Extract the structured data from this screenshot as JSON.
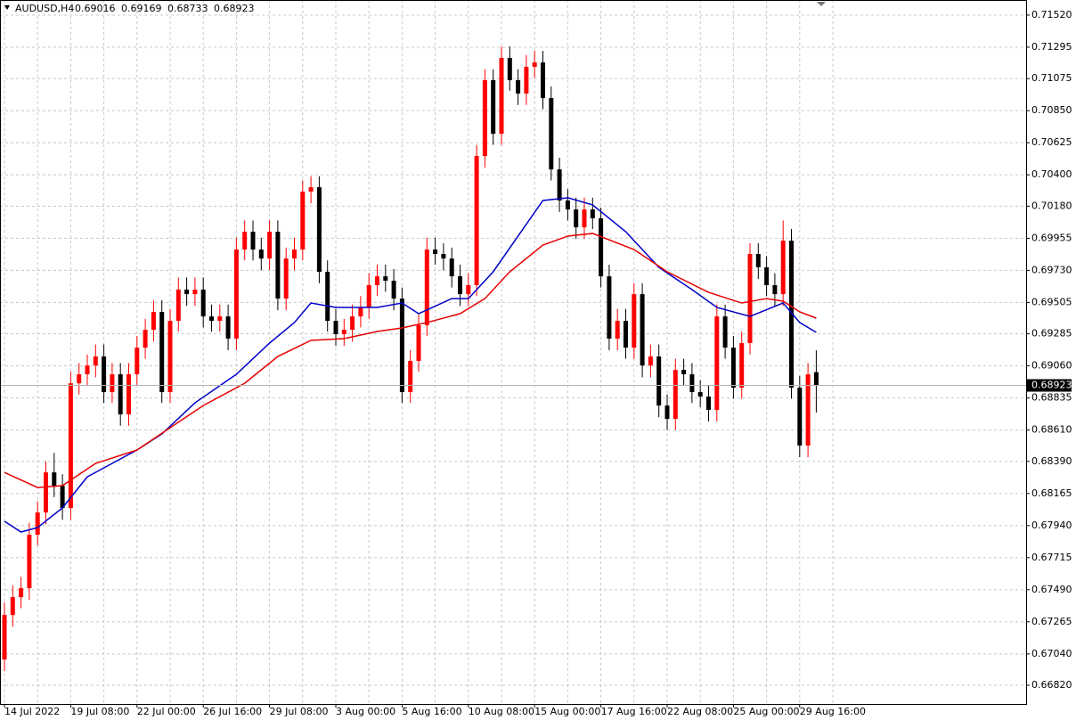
{
  "chart_data": {
    "type": "candlestick",
    "symbol": "AUDUSD,H4",
    "categories": [
      "14 Jul 2022",
      null,
      null,
      null,
      null,
      null,
      null,
      null,
      "19 Jul 08:00",
      null,
      null,
      null,
      null,
      null,
      null,
      null,
      "22 Jul 00:00",
      null,
      null,
      null,
      null,
      null,
      null,
      null,
      "26 Jul 16:00",
      null,
      null,
      null,
      null,
      null,
      null,
      null,
      "29 Jul 08:00",
      null,
      null,
      null,
      null,
      null,
      null,
      null,
      "3 Aug 00:00",
      null,
      null,
      null,
      null,
      null,
      null,
      null,
      "5 Aug 16:00",
      null,
      null,
      null,
      null,
      null,
      null,
      null,
      "10 Aug 08:00",
      null,
      null,
      null,
      null,
      null,
      null,
      null,
      "15 Aug 00:00",
      null,
      null,
      null,
      null,
      null,
      null,
      null,
      "17 Aug 16:00",
      null,
      null,
      null,
      null,
      null,
      null,
      null,
      "22 Aug 08:00",
      null,
      null,
      null,
      null,
      null,
      null,
      null,
      "25 Aug 00:00",
      null,
      null,
      null,
      null,
      null,
      null,
      null,
      "29 Aug 16:00",
      null,
      null
    ],
    "open": [
      0.67001,
      0.67313,
      0.67438,
      0.67501,
      0.67876,
      0.68032,
      0.68313,
      0.6822,
      0.68063,
      0.68938,
      0.69001,
      0.69063,
      0.69126,
      0.68876,
      0.69001,
      0.6872,
      0.69001,
      0.69188,
      0.69313,
      0.69438,
      0.68876,
      0.69376,
      0.69595,
      0.69563,
      0.69595,
      0.69407,
      0.69376,
      0.69407,
      0.69251,
      0.69876,
      0.70001,
      0.69876,
      0.69813,
      0.70001,
      0.69532,
      0.69813,
      0.69876,
      0.70282,
      0.70313,
      0.6972,
      0.69376,
      0.69282,
      0.69313,
      0.69407,
      0.6947,
      0.69626,
      0.69688,
      0.69657,
      0.69532,
      0.68876,
      0.69095,
      0.69345,
      0.69876,
      0.69845,
      0.69813,
      0.69688,
      0.69563,
      0.69626,
      0.70532,
      0.71064,
      0.70688,
      0.7122,
      0.71064,
      0.7097,
      0.71157,
      0.71188,
      0.70938,
      0.70438,
      0.7022,
      0.70157,
      0.70032,
      0.70157,
      0.70095,
      0.69688,
      0.69251,
      0.69376,
      0.69188,
      0.69563,
      0.69063,
      0.69126,
      0.68782,
      0.68688,
      0.69032,
      0.69001,
      0.68876,
      0.68845,
      0.68751,
      0.69407,
      0.69188,
      0.68907,
      0.6922,
      0.69845,
      0.69751,
      0.69626,
      0.69563,
      0.69938,
      0.68907,
      0.68501,
      0.69016
    ],
    "high": [
      0.674,
      0.6752,
      0.6758,
      0.6796,
      0.6811,
      0.6839,
      0.6845,
      0.683,
      0.6902,
      0.6908,
      0.6914,
      0.6921,
      0.6921,
      0.6908,
      0.6908,
      0.6908,
      0.6927,
      0.6939,
      0.6952,
      0.6952,
      0.6946,
      0.6968,
      0.6968,
      0.6968,
      0.6968,
      0.6949,
      0.6949,
      0.6949,
      0.6996,
      0.7008,
      0.7008,
      0.6996,
      0.7008,
      0.7008,
      0.6989,
      0.6996,
      0.7036,
      0.7039,
      0.7039,
      0.698,
      0.6946,
      0.6939,
      0.6949,
      0.6955,
      0.6971,
      0.6977,
      0.6977,
      0.6974,
      0.6961,
      0.6917,
      0.6942,
      0.6996,
      0.6996,
      0.6992,
      0.6989,
      0.6977,
      0.6971,
      0.7061,
      0.7114,
      0.7114,
      0.713,
      0.713,
      0.7114,
      0.7124,
      0.7127,
      0.7127,
      0.7102,
      0.7052,
      0.703,
      0.7024,
      0.7024,
      0.7024,
      0.7017,
      0.6977,
      0.6946,
      0.6946,
      0.6964,
      0.6964,
      0.6921,
      0.6921,
      0.6886,
      0.6911,
      0.6911,
      0.6908,
      0.6896,
      0.6892,
      0.6949,
      0.6949,
      0.6927,
      0.693,
      0.6992,
      0.6992,
      0.6983,
      0.6971,
      0.7008,
      0.7002,
      0.6899,
      0.6908,
      0.69169
    ],
    "low": [
      0.6692,
      0.6723,
      0.6736,
      0.6742,
      0.678,
      0.6795,
      0.6814,
      0.6798,
      0.6798,
      0.6886,
      0.6892,
      0.6898,
      0.688,
      0.688,
      0.6864,
      0.6864,
      0.6892,
      0.6911,
      0.6923,
      0.688,
      0.688,
      0.693,
      0.6948,
      0.6948,
      0.6933,
      0.693,
      0.693,
      0.6917,
      0.6917,
      0.698,
      0.698,
      0.6973,
      0.6973,
      0.6945,
      0.6945,
      0.6973,
      0.698,
      0.702,
      0.6964,
      0.693,
      0.692,
      0.692,
      0.6923,
      0.6933,
      0.6939,
      0.6955,
      0.6958,
      0.6945,
      0.688,
      0.688,
      0.6902,
      0.6927,
      0.6977,
      0.6973,
      0.6961,
      0.6948,
      0.6948,
      0.6955,
      0.7045,
      0.7061,
      0.7061,
      0.7099,
      0.7089,
      0.7089,
      0.7108,
      0.7086,
      0.7036,
      0.7014,
      0.7008,
      0.6995,
      0.6995,
      0.7002,
      0.6961,
      0.6917,
      0.6917,
      0.6911,
      0.6911,
      0.6898,
      0.6898,
      0.687,
      0.6861,
      0.6861,
      0.6892,
      0.688,
      0.6877,
      0.6867,
      0.6867,
      0.6911,
      0.6883,
      0.6883,
      0.6914,
      0.6967,
      0.6955,
      0.6948,
      0.6948,
      0.6883,
      0.6842,
      0.6842,
      0.68733
    ],
    "close": [
      0.67313,
      0.67438,
      0.67501,
      0.67876,
      0.68032,
      0.68313,
      0.6822,
      0.68063,
      0.68938,
      0.69001,
      0.69063,
      0.69126,
      0.68876,
      0.69001,
      0.6872,
      0.69001,
      0.69188,
      0.69313,
      0.69438,
      0.68876,
      0.69376,
      0.69595,
      0.69563,
      0.69595,
      0.69407,
      0.69376,
      0.69407,
      0.69251,
      0.69876,
      0.70001,
      0.69876,
      0.69813,
      0.70001,
      0.69532,
      0.69813,
      0.69876,
      0.70282,
      0.70313,
      0.6972,
      0.69376,
      0.69282,
      0.69313,
      0.69407,
      0.6947,
      0.69626,
      0.69688,
      0.69657,
      0.69532,
      0.68876,
      0.69095,
      0.69345,
      0.69876,
      0.69845,
      0.69813,
      0.69688,
      0.69563,
      0.69626,
      0.70532,
      0.71064,
      0.70688,
      0.7122,
      0.71064,
      0.7097,
      0.71157,
      0.71188,
      0.70938,
      0.70438,
      0.7022,
      0.70157,
      0.70032,
      0.70157,
      0.70095,
      0.69688,
      0.69251,
      0.69376,
      0.69188,
      0.69563,
      0.69063,
      0.69126,
      0.68782,
      0.68688,
      0.69032,
      0.69001,
      0.68876,
      0.68845,
      0.68751,
      0.69407,
      0.69188,
      0.68907,
      0.6922,
      0.69845,
      0.69751,
      0.69626,
      0.69563,
      0.69938,
      0.68907,
      0.68501,
      0.69001,
      0.68923
    ],
    "up_color": "#ff0000",
    "down_color": "#000000",
    "moving_averages": [
      {
        "color": "#0000c8",
        "x": [
          0,
          2,
          4,
          7,
          10,
          16,
          19,
          23,
          28,
          32,
          35,
          37,
          40,
          45,
          48,
          50,
          54,
          56,
          59,
          62,
          65,
          68,
          71,
          75,
          79,
          83,
          86,
          90,
          94,
          96,
          98
        ],
        "values": [
          0.6797,
          0.67895,
          0.67926,
          0.68064,
          0.68282,
          0.6847,
          0.68582,
          0.68801,
          0.69001,
          0.6922,
          0.69364,
          0.69501,
          0.6947,
          0.6947,
          0.69501,
          0.69426,
          0.69532,
          0.69532,
          0.6972,
          0.6997,
          0.7022,
          0.70239,
          0.70189,
          0.70001,
          0.69751,
          0.69595,
          0.6947,
          0.69407,
          0.69501,
          0.69364,
          0.69295
        ]
      },
      {
        "color": "#e60000",
        "x": [
          0,
          4,
          7,
          11,
          16,
          20,
          24,
          29,
          33,
          37,
          41,
          45,
          48,
          51,
          55,
          58,
          61,
          65,
          68,
          71,
          76,
          80,
          85,
          89,
          92,
          94,
          96,
          98
        ],
        "values": [
          0.68313,
          0.68207,
          0.6822,
          0.68376,
          0.6847,
          0.68626,
          0.68782,
          0.68938,
          0.69126,
          0.69239,
          0.69251,
          0.69301,
          0.69326,
          0.69364,
          0.69426,
          0.69532,
          0.6972,
          0.69907,
          0.6997,
          0.69989,
          0.69876,
          0.6972,
          0.69576,
          0.69501,
          0.69532,
          0.69514,
          0.69439,
          0.69395
        ]
      }
    ],
    "ylim": [
      0.66689,
      0.71626
    ],
    "yticks": [
      {
        "value": 0.7152,
        "label": "0.71520"
      },
      {
        "value": 0.71295,
        "label": "0.71295"
      },
      {
        "value": 0.71075,
        "label": "0.71075"
      },
      {
        "value": 0.7085,
        "label": "0.70850"
      },
      {
        "value": 0.70625,
        "label": "0.70625"
      },
      {
        "value": 0.704,
        "label": "0.70400"
      },
      {
        "value": 0.7018,
        "label": "0.70180"
      },
      {
        "value": 0.69955,
        "label": "0.69955"
      },
      {
        "value": 0.6973,
        "label": "0.69730"
      },
      {
        "value": 0.69505,
        "label": "0.69505"
      },
      {
        "value": 0.69285,
        "label": "0.69285"
      },
      {
        "value": 0.6906,
        "label": "0.69060"
      },
      {
        "value": 0.68835,
        "label": "0.68835"
      },
      {
        "value": 0.6861,
        "label": "0.68610"
      },
      {
        "value": 0.6839,
        "label": "0.68390"
      },
      {
        "value": 0.68165,
        "label": "0.68165"
      },
      {
        "value": 0.6794,
        "label": "0.67940"
      },
      {
        "value": 0.67715,
        "label": "0.67715"
      },
      {
        "value": 0.6749,
        "label": "0.67490"
      },
      {
        "value": 0.67265,
        "label": "0.67265"
      },
      {
        "value": 0.6704,
        "label": "0.67040"
      },
      {
        "value": 0.6682,
        "label": "0.66820"
      }
    ],
    "grid": true
  }
}
